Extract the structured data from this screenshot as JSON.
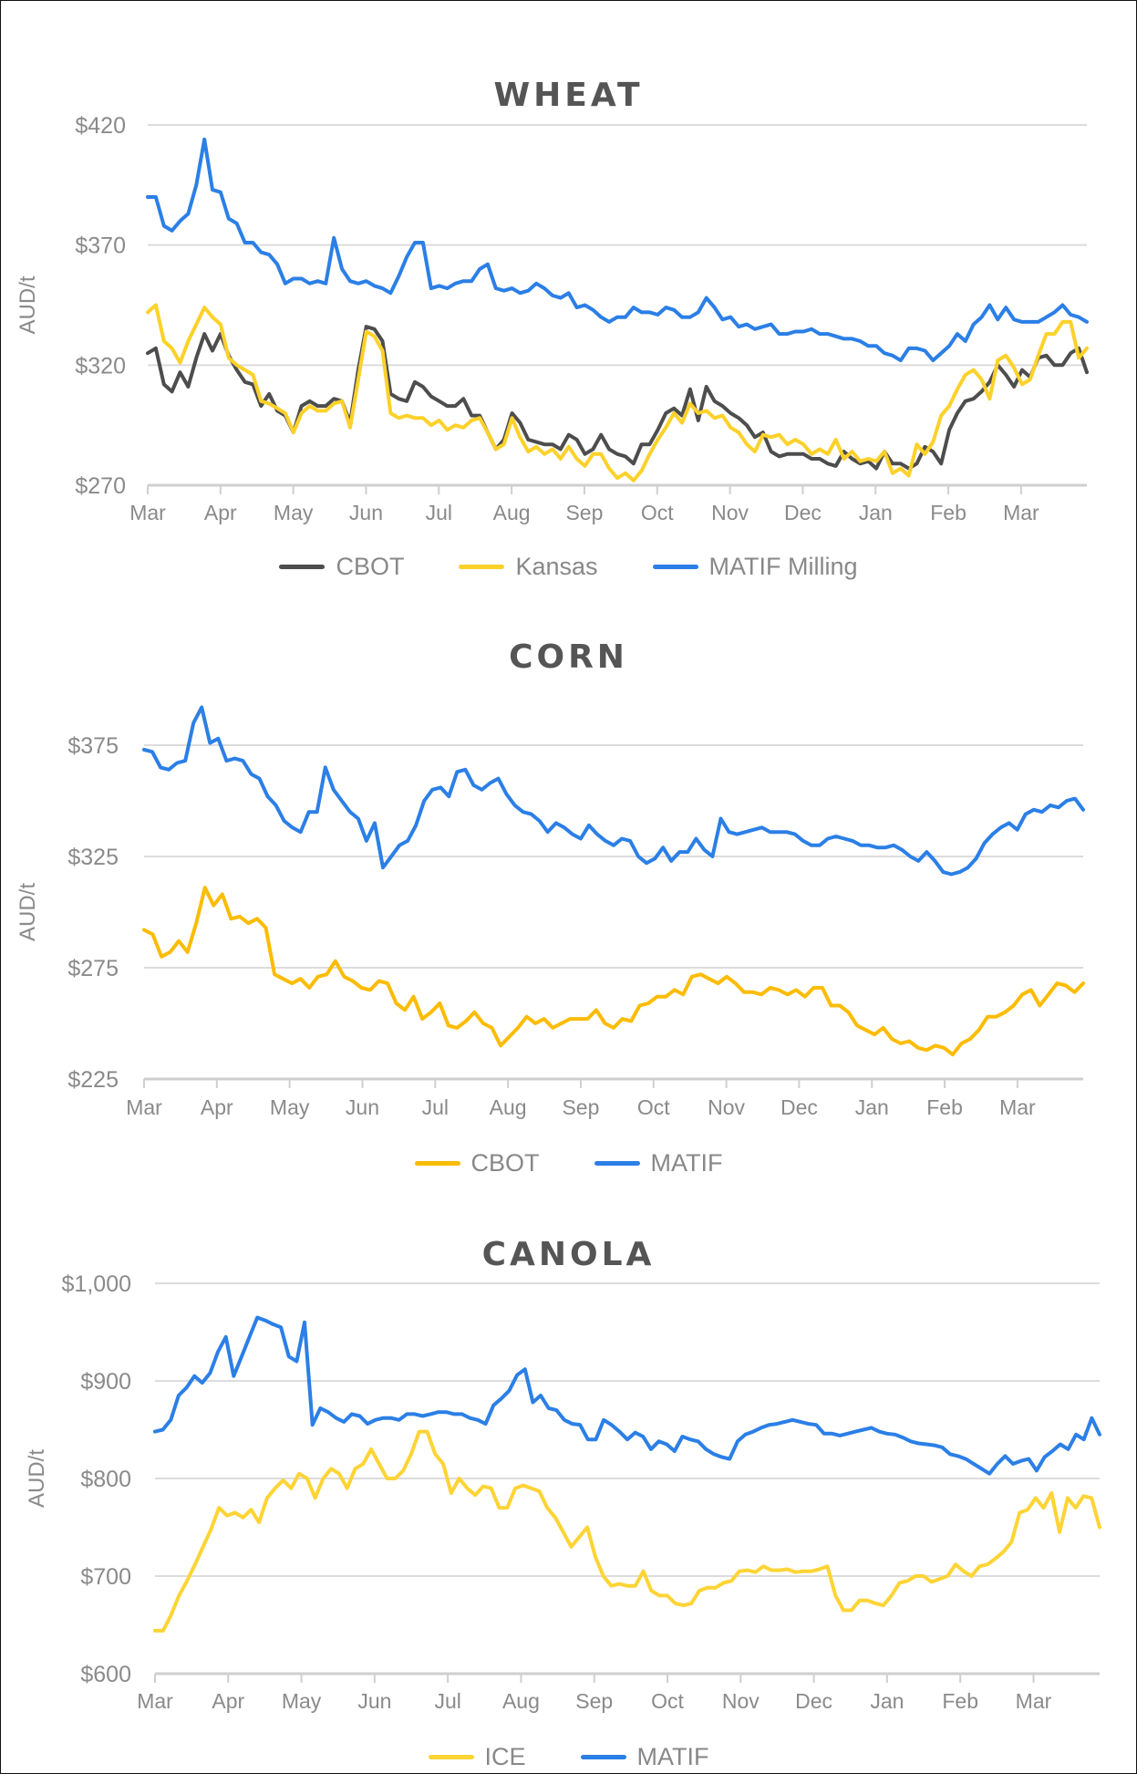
{
  "colors": {
    "cbot_wheat": "#4d4d4d",
    "kansas": "#fcd12a",
    "matif": "#2b7fe6",
    "cbot_corn": "#fbbc04",
    "ice": "#fdd435",
    "grid": "#dcdcdc",
    "title": "#555555",
    "label": "#8a8a8a"
  },
  "months": [
    "Mar",
    "Apr",
    "May",
    "Jun",
    "Jul",
    "Aug",
    "Sep",
    "Oct",
    "Nov",
    "Dec",
    "Jan",
    "Feb",
    "Mar"
  ],
  "chart_data": [
    {
      "type": "line",
      "title": "WHEAT",
      "xlabel": "",
      "ylabel": "AUD/t",
      "ylim": [
        270,
        420
      ],
      "yticks": [
        270,
        320,
        370,
        420
      ],
      "ytick_labels": [
        "$270",
        "$320",
        "$370",
        "$420"
      ],
      "categories": [
        "Mar",
        "Apr",
        "May",
        "Jun",
        "Jul",
        "Aug",
        "Sep",
        "Oct",
        "Nov",
        "Dec",
        "Jan",
        "Feb",
        "Mar"
      ],
      "grid": true,
      "legend_position": "bottom",
      "series": [
        {
          "name": "CBOT",
          "color": "#4d4d4d",
          "values": [
            325,
            327,
            312,
            309,
            317,
            311,
            323,
            333,
            326,
            333,
            324,
            318,
            313,
            312,
            303,
            308,
            301,
            299,
            292,
            303,
            305,
            303,
            303,
            306,
            305,
            296,
            318,
            336,
            335,
            330,
            308,
            306,
            305,
            313,
            311,
            307,
            305,
            303,
            303,
            306,
            299,
            299,
            292,
            285,
            289,
            300,
            296,
            289,
            288,
            287,
            287,
            285,
            291,
            289,
            283,
            285,
            291,
            285,
            283,
            282,
            279,
            287,
            287,
            293,
            300,
            302,
            299,
            310,
            297,
            311,
            305,
            303,
            300,
            298,
            295,
            290,
            292,
            284,
            282,
            283,
            283,
            283,
            281,
            281,
            279,
            278,
            284,
            281,
            279,
            280,
            277,
            284,
            279,
            279,
            277,
            279,
            286,
            284,
            279,
            293,
            300,
            305,
            306,
            309,
            313,
            320,
            316,
            311,
            318,
            315,
            323,
            324,
            320,
            320,
            325,
            327,
            317
          ]
        },
        {
          "name": "Kansas",
          "color": "#fcd12a",
          "values": [
            342,
            345,
            330,
            327,
            321,
            330,
            337,
            344,
            340,
            337,
            323,
            320,
            318,
            316,
            305,
            304,
            302,
            300,
            292,
            300,
            303,
            301,
            301,
            304,
            305,
            294,
            314,
            334,
            332,
            326,
            300,
            298,
            299,
            298,
            298,
            295,
            297,
            293,
            295,
            294,
            297,
            298,
            292,
            285,
            287,
            298,
            290,
            284,
            286,
            283,
            285,
            281,
            286,
            281,
            278,
            283,
            283,
            277,
            273,
            275,
            272,
            276,
            283,
            289,
            294,
            300,
            296,
            304,
            300,
            301,
            298,
            299,
            294,
            292,
            287,
            284,
            291,
            290,
            291,
            287,
            289,
            287,
            283,
            285,
            283,
            289,
            281,
            284,
            280,
            281,
            280,
            284,
            275,
            277,
            274,
            287,
            283,
            288,
            299,
            303,
            310,
            316,
            318,
            314,
            306,
            322,
            324,
            319,
            312,
            314,
            324,
            333,
            333,
            338,
            338,
            323,
            327
          ]
        },
        {
          "name": "MATIF Milling",
          "color": "#2b7fe6",
          "values": [
            390,
            390,
            378,
            376,
            380,
            383,
            395,
            414,
            393,
            392,
            381,
            379,
            371,
            371,
            367,
            366,
            362,
            354,
            356,
            356,
            354,
            355,
            354,
            373,
            360,
            355,
            354,
            355,
            353,
            352,
            350,
            357,
            365,
            371,
            371,
            352,
            353,
            352,
            354,
            355,
            355,
            360,
            362,
            352,
            351,
            352,
            350,
            351,
            354,
            352,
            349,
            348,
            350,
            344,
            345,
            343,
            340,
            338,
            340,
            340,
            344,
            342,
            342,
            341,
            344,
            343,
            340,
            340,
            342,
            348,
            344,
            339,
            340,
            336,
            337,
            335,
            336,
            337,
            333,
            333,
            334,
            334,
            335,
            333,
            333,
            332,
            331,
            331,
            330,
            328,
            328,
            325,
            324,
            322,
            327,
            327,
            326,
            322,
            325,
            328,
            333,
            330,
            337,
            340,
            345,
            339,
            344,
            339,
            338,
            338,
            338,
            340,
            342,
            345,
            341,
            340,
            338
          ]
        }
      ]
    },
    {
      "type": "line",
      "title": "CORN",
      "xlabel": "",
      "ylabel": "AUD/t",
      "ylim": [
        225,
        395
      ],
      "yticks": [
        225,
        275,
        325,
        375
      ],
      "ytick_labels": [
        "$225",
        "$275",
        "$325",
        "$375"
      ],
      "categories": [
        "Mar",
        "Apr",
        "May",
        "Jun",
        "Jul",
        "Aug",
        "Sep",
        "Oct",
        "Nov",
        "Dec",
        "Jan",
        "Feb",
        "Mar"
      ],
      "grid": true,
      "legend_position": "bottom",
      "series": [
        {
          "name": "CBOT",
          "color": "#fbbc04",
          "values": [
            292,
            290,
            280,
            282,
            287,
            282,
            295,
            311,
            303,
            308,
            297,
            298,
            295,
            297,
            293,
            272,
            270,
            268,
            270,
            266,
            271,
            272,
            278,
            271,
            269,
            266,
            265,
            269,
            268,
            259,
            256,
            262,
            252,
            255,
            259,
            249,
            248,
            251,
            255,
            250,
            248,
            240,
            244,
            248,
            253,
            250,
            252,
            248,
            250,
            252,
            252,
            252,
            256,
            250,
            248,
            252,
            251,
            258,
            259,
            262,
            262,
            265,
            263,
            271,
            272,
            270,
            268,
            271,
            268,
            264,
            264,
            263,
            266,
            265,
            263,
            265,
            262,
            266,
            266,
            258,
            258,
            255,
            249,
            247,
            245,
            248,
            243,
            241,
            242,
            239,
            238,
            240,
            239,
            236,
            241,
            243,
            247,
            253,
            253,
            255,
            258,
            263,
            265,
            258,
            263,
            268,
            267,
            264,
            268
          ]
        },
        {
          "name": "MATIF",
          "color": "#2b7fe6",
          "values": [
            373,
            372,
            365,
            364,
            367,
            368,
            385,
            392,
            376,
            378,
            368,
            369,
            368,
            362,
            360,
            352,
            348,
            341,
            338,
            336,
            345,
            345,
            365,
            355,
            350,
            345,
            342,
            332,
            340,
            320,
            325,
            330,
            332,
            339,
            350,
            355,
            356,
            352,
            363,
            364,
            357,
            355,
            358,
            360,
            353,
            348,
            345,
            344,
            341,
            336,
            340,
            338,
            335,
            333,
            339,
            335,
            332,
            330,
            333,
            332,
            325,
            322,
            324,
            329,
            323,
            327,
            327,
            333,
            328,
            325,
            342,
            336,
            335,
            336,
            337,
            338,
            336,
            336,
            336,
            335,
            332,
            330,
            330,
            333,
            334,
            333,
            332,
            330,
            330,
            329,
            329,
            330,
            328,
            325,
            323,
            327,
            323,
            318,
            317,
            318,
            320,
            324,
            331,
            335,
            338,
            340,
            337,
            344,
            346,
            345,
            348,
            347,
            350,
            351,
            346
          ]
        }
      ]
    },
    {
      "type": "line",
      "title": "CANOLA",
      "xlabel": "",
      "ylabel": "AUD/t",
      "ylim": [
        600,
        1000
      ],
      "yticks": [
        600,
        700,
        800,
        900,
        1000
      ],
      "ytick_labels": [
        "$600",
        "$700",
        "$800",
        "$900",
        "$1,000"
      ],
      "categories": [
        "Mar",
        "Apr",
        "May",
        "Jun",
        "Jul",
        "Aug",
        "Sep",
        "Oct",
        "Nov",
        "Dec",
        "Jan",
        "Feb",
        "Mar"
      ],
      "grid": true,
      "legend_position": "bottom",
      "series": [
        {
          "name": "ICE",
          "color": "#fdd435",
          "values": [
            644,
            644,
            660,
            680,
            695,
            712,
            730,
            748,
            770,
            762,
            765,
            760,
            768,
            755,
            780,
            790,
            798,
            790,
            805,
            800,
            780,
            800,
            810,
            805,
            790,
            810,
            815,
            830,
            815,
            800,
            800,
            808,
            825,
            848,
            848,
            825,
            815,
            785,
            800,
            790,
            783,
            792,
            790,
            770,
            770,
            790,
            793,
            790,
            787,
            770,
            760,
            745,
            730,
            740,
            750,
            720,
            700,
            690,
            692,
            690,
            690,
            705,
            685,
            680,
            680,
            672,
            670,
            672,
            685,
            688,
            688,
            693,
            695,
            705,
            706,
            704,
            710,
            706,
            706,
            707,
            704,
            705,
            705,
            707,
            710,
            680,
            665,
            665,
            675,
            675,
            672,
            670,
            680,
            693,
            695,
            700,
            700,
            694,
            697,
            700,
            712,
            705,
            700,
            710,
            712,
            718,
            725,
            735,
            765,
            768,
            780,
            770,
            785,
            745,
            780,
            770,
            782,
            780,
            750
          ]
        },
        {
          "name": "MATIF",
          "color": "#2b7fe6",
          "values": [
            848,
            850,
            860,
            885,
            893,
            905,
            898,
            908,
            930,
            945,
            905,
            925,
            945,
            965,
            962,
            958,
            955,
            925,
            920,
            960,
            855,
            872,
            868,
            862,
            858,
            866,
            864,
            856,
            860,
            862,
            862,
            860,
            866,
            866,
            864,
            866,
            868,
            868,
            866,
            866,
            862,
            860,
            856,
            875,
            882,
            890,
            906,
            912,
            878,
            885,
            872,
            870,
            860,
            856,
            855,
            840,
            840,
            860,
            855,
            848,
            840,
            847,
            843,
            830,
            838,
            835,
            828,
            843,
            840,
            838,
            830,
            825,
            822,
            820,
            838,
            845,
            848,
            852,
            855,
            856,
            858,
            860,
            858,
            856,
            855,
            846,
            846,
            844,
            846,
            848,
            850,
            852,
            848,
            846,
            845,
            842,
            838,
            836,
            835,
            834,
            832,
            825,
            823,
            820,
            815,
            810,
            805,
            815,
            823,
            815,
            818,
            820,
            808,
            822,
            828,
            835,
            830,
            845,
            840,
            862,
            845
          ]
        }
      ]
    }
  ],
  "charts": {
    "wheat": {
      "title": "WHEAT",
      "ylabel": "AUD/t",
      "legend": [
        "CBOT",
        "Kansas",
        "MATIF Milling"
      ]
    },
    "corn": {
      "title": "CORN",
      "ylabel": "AUD/t",
      "legend": [
        "CBOT",
        "MATIF"
      ]
    },
    "canola": {
      "title": "CANOLA",
      "ylabel": "AUD/t",
      "legend": [
        "ICE",
        "MATIF"
      ]
    }
  }
}
